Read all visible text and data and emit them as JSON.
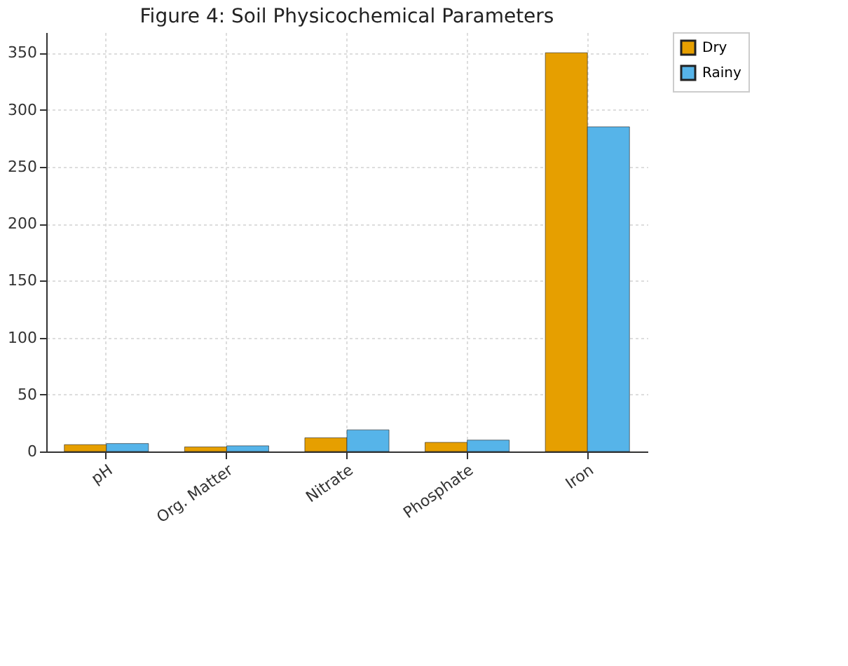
{
  "chart_data": {
    "type": "bar",
    "title": "Figure 4: Soil Physicochemical Parameters",
    "categories": [
      "pH",
      "Org. Matter",
      "Nitrate",
      "Phosphate",
      "Iron"
    ],
    "series": [
      {
        "name": "Dry",
        "color": "#e69f00",
        "values": [
          6,
          4,
          12,
          8,
          350
        ]
      },
      {
        "name": "Rainy",
        "color": "#56b4e9",
        "values": [
          7,
          5,
          19,
          10,
          285
        ]
      }
    ],
    "ylim": [
      0,
      368
    ],
    "yticks": [
      0,
      50,
      100,
      150,
      200,
      250,
      300,
      350
    ],
    "grid": true,
    "legend": "right"
  }
}
